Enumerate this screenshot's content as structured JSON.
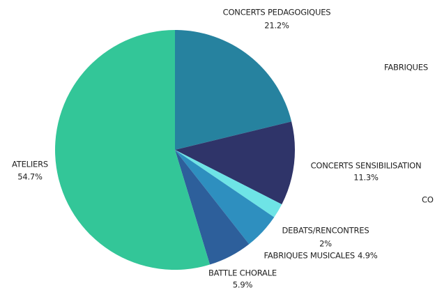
{
  "chart_data": {
    "type": "pie",
    "categories": [
      "CONCERTS PEDAGOGIQUES",
      "CONCERTS SENSIBILISATION",
      "DEBATS/RENCONTRES",
      "FABRIQUES MUSICALES",
      "BATTLE CHORALE",
      "ATELIERS"
    ],
    "values": [
      21.2,
      11.3,
      2,
      4.9,
      5.9,
      54.7
    ],
    "value_labels": [
      "21.2%",
      "11.3%",
      "2%",
      "4.9%",
      "5.9%",
      "54.7%"
    ],
    "colors": [
      "#26829f",
      "#2f3469",
      "#6ee4e6",
      "#2e8fbf",
      "#2d5f9b",
      "#33c698"
    ],
    "annotations": [
      "FABRIQUES",
      "CO"
    ]
  }
}
